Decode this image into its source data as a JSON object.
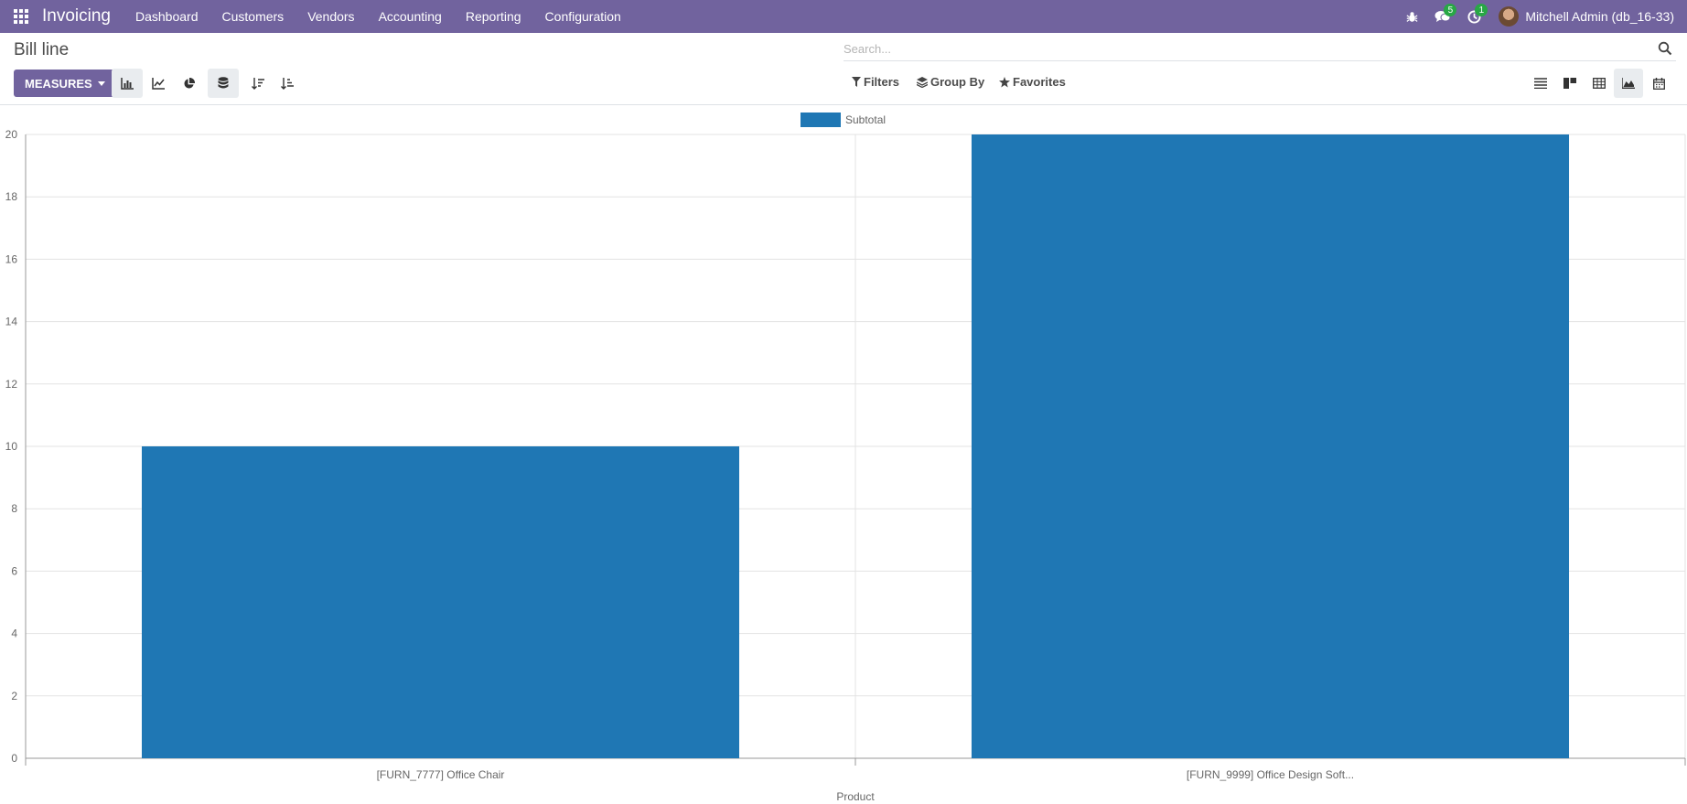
{
  "navbar": {
    "brand": "Invoicing",
    "menu": [
      "Dashboard",
      "Customers",
      "Vendors",
      "Accounting",
      "Reporting",
      "Configuration"
    ],
    "messages_count": "5",
    "activities_count": "1",
    "user": "Mitchell Admin (db_16-33)"
  },
  "control_panel": {
    "title": "Bill line",
    "search_placeholder": "Search...",
    "measures_label": "MEASURES",
    "filters_label": "Filters",
    "group_by_label": "Group By",
    "favorites_label": "Favorites",
    "active_chart_mode": "bar",
    "active_view": "graph"
  },
  "colors": {
    "brand": "#71639e",
    "bar": "#1f77b4",
    "badge": "#28a745"
  },
  "chart_data": {
    "type": "bar",
    "categories": [
      "[FURN_7777] Office Chair",
      "[FURN_9999] Office Design Soft..."
    ],
    "series": [
      {
        "name": "Subtotal",
        "values": [
          10,
          20
        ]
      }
    ],
    "xlabel": "Product",
    "ylabel": "",
    "ylim": [
      0,
      20
    ],
    "yticks": [
      0,
      2,
      4,
      6,
      8,
      10,
      12,
      14,
      16,
      18,
      20
    ],
    "grid": true,
    "legend": "top-center"
  }
}
